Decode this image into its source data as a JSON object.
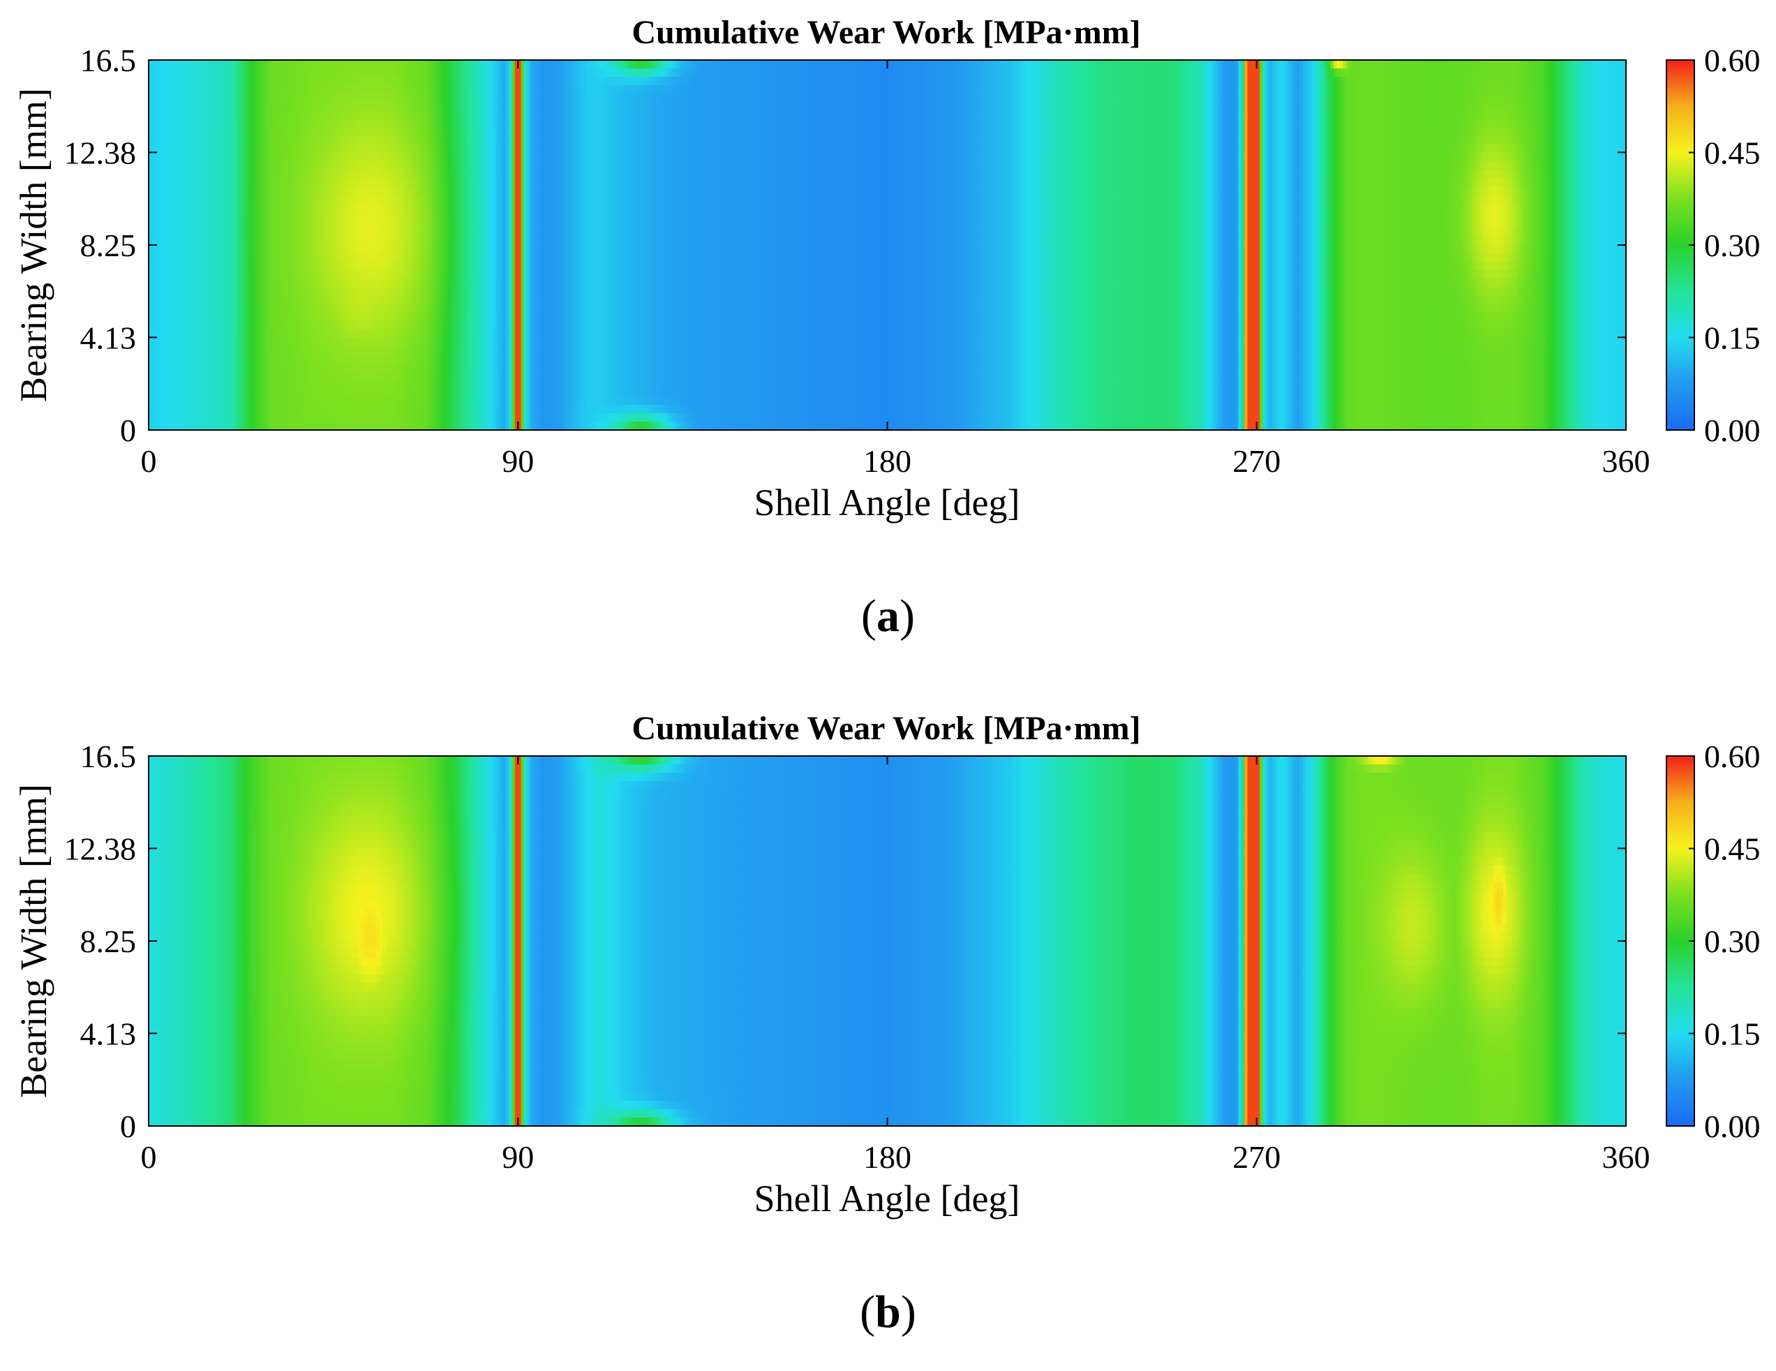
{
  "colors": {
    "colormap": [
      "#1a6cf2",
      "#2299f0",
      "#22dcef",
      "#23e39a",
      "#2bd12b",
      "#7be020",
      "#f6f21e",
      "#f7b01c",
      "#f22018"
    ],
    "axis": "#000000",
    "background": "#ffffff"
  },
  "charts": [
    {
      "panel_label": "a",
      "chart_data": {
        "type": "heatmap",
        "title": "Cumulative Wear Work [MPa·mm]",
        "xlabel": "Shell Angle [deg]",
        "ylabel": "Bearing Width [mm]",
        "xlim": [
          0,
          360
        ],
        "ylim": [
          0,
          16.5
        ],
        "xticks": [
          0,
          90,
          180,
          270,
          360
        ],
        "yticks": [
          0,
          4.13,
          8.25,
          12.38,
          16.5
        ],
        "ytick_labels": [
          "0",
          "4.13",
          "8.25",
          "12.38",
          "16.5"
        ],
        "colorbar": {
          "min": 0.0,
          "max": 0.6,
          "ticks": [
            "0.00",
            "0.15",
            "0.30",
            "0.45",
            "0.60"
          ]
        },
        "profile": {
          "angles": [
            0,
            5,
            12,
            20,
            25,
            30,
            40,
            50,
            60,
            68,
            75,
            80,
            84,
            87,
            88.5,
            89.5,
            90.5,
            91.5,
            93,
            96,
            100,
            104,
            107,
            110,
            116,
            124,
            135,
            150,
            165,
            180,
            195,
            210,
            222,
            232,
            242,
            250,
            256,
            260,
            262,
            265,
            266.5,
            267.5,
            268.5,
            270,
            270.5,
            271.5,
            273,
            276,
            280,
            284,
            288,
            292,
            296,
            300,
            310,
            320,
            326,
            333,
            340,
            346,
            350,
            354,
            360
          ],
          "values": [
            0.14,
            0.15,
            0.17,
            0.2,
            0.3,
            0.36,
            0.37,
            0.37,
            0.37,
            0.35,
            0.26,
            0.2,
            0.14,
            0.09,
            0.2,
            0.58,
            0.58,
            0.2,
            0.1,
            0.07,
            0.08,
            0.11,
            0.13,
            0.13,
            0.11,
            0.09,
            0.08,
            0.07,
            0.06,
            0.05,
            0.07,
            0.12,
            0.2,
            0.24,
            0.25,
            0.25,
            0.2,
            0.12,
            0.08,
            0.07,
            0.2,
            0.58,
            0.58,
            0.58,
            0.58,
            0.2,
            0.1,
            0.15,
            0.08,
            0.15,
            0.28,
            0.35,
            0.36,
            0.36,
            0.35,
            0.35,
            0.36,
            0.36,
            0.33,
            0.24,
            0.18,
            0.15,
            0.14
          ]
        },
        "hot_spots": [
          {
            "angle": 54,
            "width": 9.0,
            "peak": 0.44,
            "angle_spread": 14,
            "width_spread": 5.0
          },
          {
            "angle": 52,
            "width": 6.0,
            "peak": 0.42,
            "angle_spread": 9,
            "width_spread": 2.5
          },
          {
            "angle": 328,
            "width": 9.5,
            "peak": 0.44,
            "angle_spread": 7,
            "width_spread": 3.6
          },
          {
            "angle": 120,
            "width": 16.5,
            "peak": 0.3,
            "angle_spread": 7,
            "width_spread": 0.7
          },
          {
            "angle": 120,
            "width": 0,
            "peak": 0.3,
            "angle_spread": 7,
            "width_spread": 0.7
          },
          {
            "angle": 290,
            "width": 16.4,
            "peak": 0.46,
            "angle_spread": 2,
            "width_spread": 0.4
          }
        ]
      }
    },
    {
      "panel_label": "b",
      "chart_data": {
        "type": "heatmap",
        "title": "Cumulative Wear Work [MPa·mm]",
        "xlabel": "Shell Angle [deg]",
        "ylabel": "Bearing Width [mm]",
        "xlim": [
          0,
          360
        ],
        "ylim": [
          0,
          16.5
        ],
        "xticks": [
          0,
          90,
          180,
          270,
          360
        ],
        "yticks": [
          0,
          4.13,
          8.25,
          12.38,
          16.5
        ],
        "ytick_labels": [
          "0",
          "4.13",
          "8.25",
          "12.38",
          "16.5"
        ],
        "colorbar": {
          "min": 0.0,
          "max": 0.6,
          "ticks": [
            "0.00",
            "0.15",
            "0.30",
            "0.45",
            "0.60"
          ]
        },
        "profile": {
          "angles": [
            0,
            5,
            12,
            20,
            25,
            30,
            40,
            50,
            60,
            68,
            75,
            80,
            84,
            87,
            88.5,
            89.5,
            90.5,
            91.5,
            93,
            96,
            100,
            104,
            107,
            110,
            116,
            124,
            135,
            150,
            165,
            180,
            195,
            210,
            222,
            232,
            242,
            250,
            256,
            260,
            262,
            265,
            266.5,
            267.5,
            268.5,
            270,
            270.5,
            271.5,
            273,
            276,
            280,
            284,
            288,
            292,
            296,
            300,
            310,
            320,
            326,
            333,
            340,
            346,
            350,
            354,
            360
          ],
          "values": [
            0.16,
            0.18,
            0.21,
            0.25,
            0.32,
            0.36,
            0.37,
            0.37,
            0.37,
            0.35,
            0.28,
            0.2,
            0.14,
            0.09,
            0.2,
            0.58,
            0.58,
            0.2,
            0.1,
            0.07,
            0.08,
            0.12,
            0.15,
            0.17,
            0.13,
            0.1,
            0.09,
            0.08,
            0.07,
            0.06,
            0.08,
            0.13,
            0.2,
            0.24,
            0.26,
            0.25,
            0.2,
            0.12,
            0.08,
            0.07,
            0.2,
            0.58,
            0.58,
            0.58,
            0.58,
            0.2,
            0.1,
            0.16,
            0.09,
            0.18,
            0.3,
            0.36,
            0.37,
            0.37,
            0.36,
            0.36,
            0.37,
            0.37,
            0.34,
            0.26,
            0.2,
            0.17,
            0.16
          ]
        },
        "hot_spots": [
          {
            "angle": 53,
            "width": 9.5,
            "peak": 0.45,
            "angle_spread": 14,
            "width_spread": 5.0
          },
          {
            "angle": 54,
            "width": 8.5,
            "peak": 0.47,
            "angle_spread": 6,
            "width_spread": 3.0
          },
          {
            "angle": 308,
            "width": 9.0,
            "peak": 0.42,
            "angle_spread": 8,
            "width_spread": 3.6
          },
          {
            "angle": 328,
            "width": 9.5,
            "peak": 0.45,
            "angle_spread": 7,
            "width_spread": 4.0
          },
          {
            "angle": 329,
            "width": 10.0,
            "peak": 0.48,
            "angle_spread": 3,
            "width_spread": 2.5
          },
          {
            "angle": 120,
            "width": 16.5,
            "peak": 0.3,
            "angle_spread": 8,
            "width_spread": 0.7
          },
          {
            "angle": 120,
            "width": 0,
            "peak": 0.3,
            "angle_spread": 8,
            "width_spread": 0.7
          },
          {
            "angle": 300,
            "width": 16.4,
            "peak": 0.46,
            "angle_spread": 4,
            "width_spread": 0.4
          }
        ]
      }
    }
  ]
}
